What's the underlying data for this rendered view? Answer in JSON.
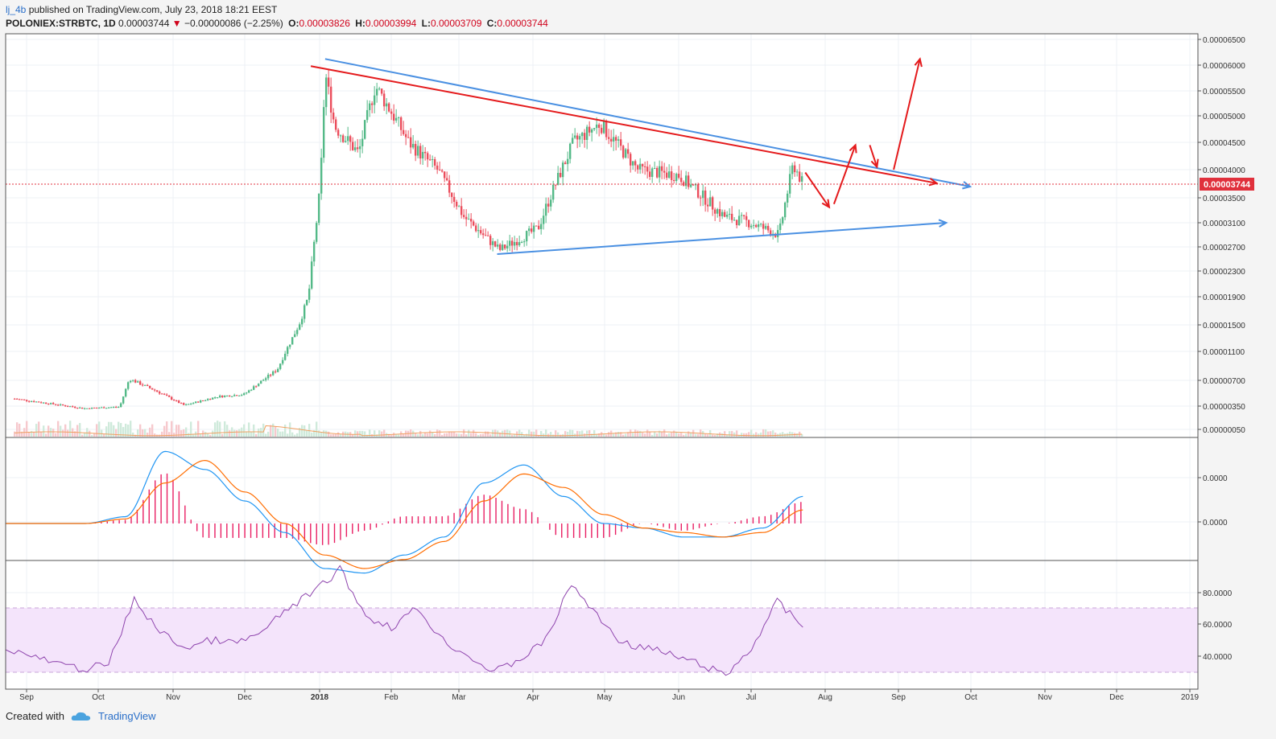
{
  "header": {
    "user": "lj_4b",
    "published_text": "published on TradingView.com, July 23, 2018 18:21 EEST",
    "symbol": "POLONIEX:STRBTC, 1D",
    "last": "0.00003744",
    "change_arrow": "▼",
    "change": "−0.00000086 (−2.25%)",
    "o_label": "O:",
    "o_value": "0.00003826",
    "h_label": "H:",
    "h_value": "0.00003994",
    "l_label": "L:",
    "l_value": "0.00003709",
    "c_label": "C:",
    "c_value": "0.00003744"
  },
  "footer": {
    "created_with": "Created with",
    "brand": "TradingView",
    "logo_icon": "tradingview-cloud-icon"
  },
  "colors": {
    "up": "#53b987",
    "down": "#eb4d5c",
    "trend_blue": "#4a90e2",
    "trend_red": "#e41a1c",
    "macd": "#2196f3",
    "signal": "#ff6d00",
    "hist": "#e91e63",
    "rsi": "#8e44ad",
    "rsi_band": "#f3e3fb"
  },
  "chart_data": [
    {
      "type": "candlestick",
      "title": "POLONIEX:STRBTC, 1D",
      "x_ticks": [
        "Sep",
        "Oct",
        "Nov",
        "Dec",
        "2018",
        "Feb",
        "Mar",
        "Apr",
        "May",
        "Jun",
        "Jul",
        "Aug",
        "Sep",
        "Oct",
        "Nov",
        "Dec",
        "2019"
      ],
      "y_ticks": [
        "0.00006500",
        "0.00006000",
        "0.00005500",
        "0.00005000",
        "0.00004500",
        "0.00004000",
        "0.00003500",
        "0.00003100",
        "0.00002700",
        "0.00002300",
        "0.00001900",
        "0.00001500",
        "0.00001100",
        "0.00000700",
        "0.00000350",
        "0.00000050"
      ],
      "last_price_label": "0.00003744",
      "series_close_approx": [
        [
          "2017-08-27",
          4.5e-06
        ],
        [
          "2017-09-25",
          3.2e-06
        ],
        [
          "2017-10-10",
          3.4e-06
        ],
        [
          "2017-10-14",
          7.2e-06
        ],
        [
          "2017-10-25",
          5.6e-06
        ],
        [
          "2017-11-06",
          3.6e-06
        ],
        [
          "2017-11-20",
          4.8e-06
        ],
        [
          "2017-12-01",
          5.1e-06
        ],
        [
          "2017-12-15",
          8.5e-06
        ],
        [
          "2017-12-24",
          1.5e-05
        ],
        [
          "2017-12-28",
          1.9e-05
        ],
        [
          "2018-01-02",
          3.7e-05
        ],
        [
          "2018-01-04",
          5.85e-05
        ],
        [
          "2018-01-08",
          4.8e-05
        ],
        [
          "2018-01-18",
          4.3e-05
        ],
        [
          "2018-01-25",
          5.6e-05
        ],
        [
          "2018-02-08",
          4.5e-05
        ],
        [
          "2018-02-20",
          4e-05
        ],
        [
          "2018-03-03",
          3.2e-05
        ],
        [
          "2018-03-18",
          2.65e-05
        ],
        [
          "2018-04-03",
          3e-05
        ],
        [
          "2018-04-18",
          4.5e-05
        ],
        [
          "2018-04-29",
          4.85e-05
        ],
        [
          "2018-05-15",
          4e-05
        ],
        [
          "2018-06-01",
          3.9e-05
        ],
        [
          "2018-06-20",
          3.2e-05
        ],
        [
          "2018-07-01",
          3.1e-05
        ],
        [
          "2018-07-13",
          2.9e-05
        ],
        [
          "2018-07-19",
          4.1e-05
        ],
        [
          "2018-07-23",
          3.744e-05
        ]
      ],
      "annotations": [
        "Descending blue trendline from Jan 2018 high (~0.0000615) to projected Oct 2018 (~0.0000370)",
        "Red trendline from Jan 2018 high (~0.0000595) to ~0.0000375 in Sep 2018",
        "Ascending blue support line from Mar 2018 low (~0.0000258) to ~0.0000310 in Sep 2018",
        "Red projection arrows: dip to ~0.0000330, bounce to ~0.0000445, pullback to ~0.0000400, rally to ~0.0000610"
      ]
    },
    {
      "type": "line",
      "title": "MACD",
      "y_ticks": [
        "0.0000",
        "0.0000"
      ],
      "series": [
        {
          "name": "MACD",
          "values": [
            0,
            0,
            0,
            1.5,
            16,
            12,
            5,
            -2,
            -10,
            -11,
            -7,
            -3,
            9,
            13,
            6,
            0,
            -1,
            -3,
            -3,
            -1,
            6
          ]
        },
        {
          "name": "Signal",
          "values": [
            0,
            0,
            0,
            1,
            9,
            14,
            7,
            0,
            -7,
            -10,
            -8,
            -4,
            5,
            11,
            8,
            2,
            -1,
            -2,
            -3,
            -2,
            3
          ]
        }
      ]
    },
    {
      "type": "line",
      "title": "RSI",
      "y_ticks": [
        "80.0000",
        "60.0000",
        "40.0000"
      ],
      "band": [
        30,
        70
      ],
      "series": [
        {
          "name": "RSI",
          "values": [
            45,
            40,
            35,
            32,
            35,
            75,
            55,
            45,
            50,
            48,
            55,
            70,
            80,
            94,
            65,
            58,
            70,
            50,
            40,
            30,
            38,
            50,
            85,
            65,
            48,
            45,
            40,
            35,
            28,
            45,
            74,
            58
          ]
        }
      ]
    }
  ]
}
